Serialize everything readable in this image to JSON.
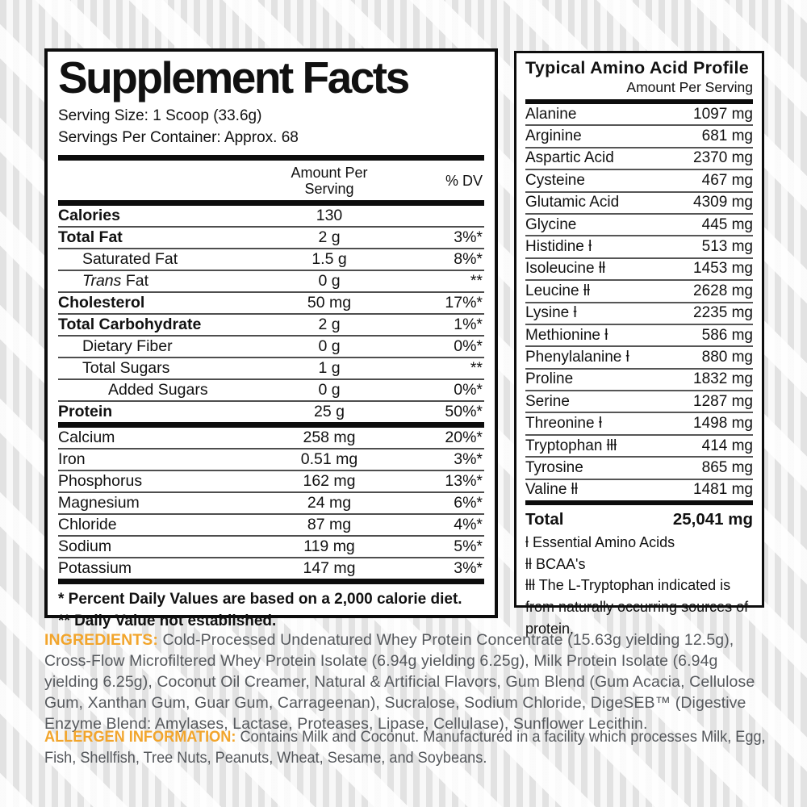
{
  "colors": {
    "accent_orange": "#F2A52C",
    "body_gray": "#56595D",
    "label_black": "#0D0D0D"
  },
  "supplement_facts": {
    "title": "Supplement Facts",
    "serving_size": "Serving Size: 1 Scoop (33.6g)",
    "servings_per_container": "Servings Per Container: Approx. 68",
    "amount_header_line1": "Amount Per",
    "amount_header_line2": "Serving",
    "dv_header": "% DV",
    "rows": [
      {
        "label": "Calories",
        "amount": "130",
        "dv": "",
        "bold": true,
        "indent": 0
      },
      {
        "label": "Total Fat",
        "amount": "2 g",
        "dv": "3%*",
        "bold": true,
        "indent": 0
      },
      {
        "label": "Saturated Fat",
        "amount": "1.5 g",
        "dv": "8%*",
        "indent": 1
      },
      {
        "label": "Trans Fat",
        "amount": "0 g",
        "dv": "**",
        "indent": 1,
        "italic_first": true
      },
      {
        "label": "Cholesterol",
        "amount": "50 mg",
        "dv": "17%*",
        "bold": true,
        "indent": 0
      },
      {
        "label": "Total Carbohydrate",
        "amount": "2 g",
        "dv": "1%*",
        "bold": true,
        "indent": 0
      },
      {
        "label": "Dietary Fiber",
        "amount": "0 g",
        "dv": "0%*",
        "indent": 1
      },
      {
        "label": "Total Sugars",
        "amount": "1 g",
        "dv": "**",
        "indent": 1
      },
      {
        "label": "Added Sugars",
        "amount": "0 g",
        "dv": "0%*",
        "indent": 2
      },
      {
        "label": "Protein",
        "amount": "25 g",
        "dv": "50%*",
        "bold": true,
        "indent": 0,
        "thick_after": true
      },
      {
        "label": "Calcium",
        "amount": "258 mg",
        "dv": "20%*",
        "indent": 0
      },
      {
        "label": "Iron",
        "amount": "0.51 mg",
        "dv": "3%*",
        "indent": 0
      },
      {
        "label": "Phosphorus",
        "amount": "162 mg",
        "dv": "13%*",
        "indent": 0
      },
      {
        "label": "Magnesium",
        "amount": "24 mg",
        "dv": "6%*",
        "indent": 0
      },
      {
        "label": "Chloride",
        "amount": "87 mg",
        "dv": "4%*",
        "indent": 0
      },
      {
        "label": "Sodium",
        "amount": "119 mg",
        "dv": "5%*",
        "indent": 0
      },
      {
        "label": "Potassium",
        "amount": "147 mg",
        "dv": "3%*",
        "indent": 0,
        "thick_after": true
      }
    ],
    "footnotes": [
      "* Percent Daily Values are based on a 2,000 calorie diet.",
      "** Daily Value not established."
    ]
  },
  "amino_profile": {
    "title": "Typical Amino Acid Profile",
    "subtitle": "Amount Per Serving",
    "rows": [
      {
        "label": "Alanine",
        "marker": "",
        "value": "1097 mg"
      },
      {
        "label": "Arginine",
        "marker": "",
        "value": "681 mg"
      },
      {
        "label": "Aspartic Acid",
        "marker": "",
        "value": "2370 mg"
      },
      {
        "label": "Cysteine",
        "marker": "",
        "value": "467 mg"
      },
      {
        "label": "Glutamic Acid",
        "marker": "",
        "value": "4309 mg"
      },
      {
        "label": "Glycine",
        "marker": "",
        "value": "445 mg"
      },
      {
        "label": "Histidine",
        "marker": "ƚ",
        "value": "513 mg"
      },
      {
        "label": "Isoleucine",
        "marker": "ƚƚ",
        "value": "1453 mg"
      },
      {
        "label": "Leucine",
        "marker": "ƚƚ",
        "value": "2628 mg"
      },
      {
        "label": "Lysine",
        "marker": "ƚ",
        "value": "2235 mg"
      },
      {
        "label": "Methionine",
        "marker": "ƚ",
        "value": "586 mg"
      },
      {
        "label": "Phenylalanine",
        "marker": "ƚ",
        "value": "880 mg"
      },
      {
        "label": "Proline",
        "marker": "",
        "value": "1832 mg"
      },
      {
        "label": "Serine",
        "marker": "",
        "value": "1287 mg"
      },
      {
        "label": "Threonine",
        "marker": "ƚ",
        "value": "1498 mg"
      },
      {
        "label": "Tryptophan",
        "marker": "ƚƚƚ",
        "value": "414 mg"
      },
      {
        "label": "Tyrosine",
        "marker": "",
        "value": "865 mg"
      },
      {
        "label": "Valine",
        "marker": "ƚƚ",
        "value": "1481 mg"
      }
    ],
    "total_label": "Total",
    "total_value": "25,041 mg",
    "legend": [
      {
        "marker": "ƚ",
        "text": "Essential Amino Acids"
      },
      {
        "marker": "ƚƚ",
        "text": "BCAA's"
      },
      {
        "marker": "ƚƚƚ",
        "text": "The L-Tryptophan indicated is from naturally occurring sources of protein."
      }
    ]
  },
  "ingredients": {
    "heading": "INGREDIENTS:",
    "text": "Cold-Processed Undenatured Whey Protein Concentrate (15.63g yielding 12.5g), Cross-Flow Microfiltered Whey Protein Isolate (6.94g yielding 6.25g), Milk Protein Isolate (6.94g yielding 6.25g), Coconut Oil Creamer, Natural & Artificial Flavors, Gum Blend (Gum Acacia, Cellulose Gum, Xanthan Gum, Guar Gum, Carrageenan), Sucralose, Sodium Chloride, DigeSEB™ (Digestive Enzyme Blend: Amylases, Lactase, Proteases, Lipase, Cellulase), Sunflower Lecithin."
  },
  "allergen": {
    "heading": "ALLERGEN INFORMATION:",
    "text": "Contains Milk and Coconut. Manufactured in a facility which processes Milk, Egg, Fish, Shellfish, Tree Nuts, Peanuts, Wheat, Sesame, and Soybeans."
  }
}
